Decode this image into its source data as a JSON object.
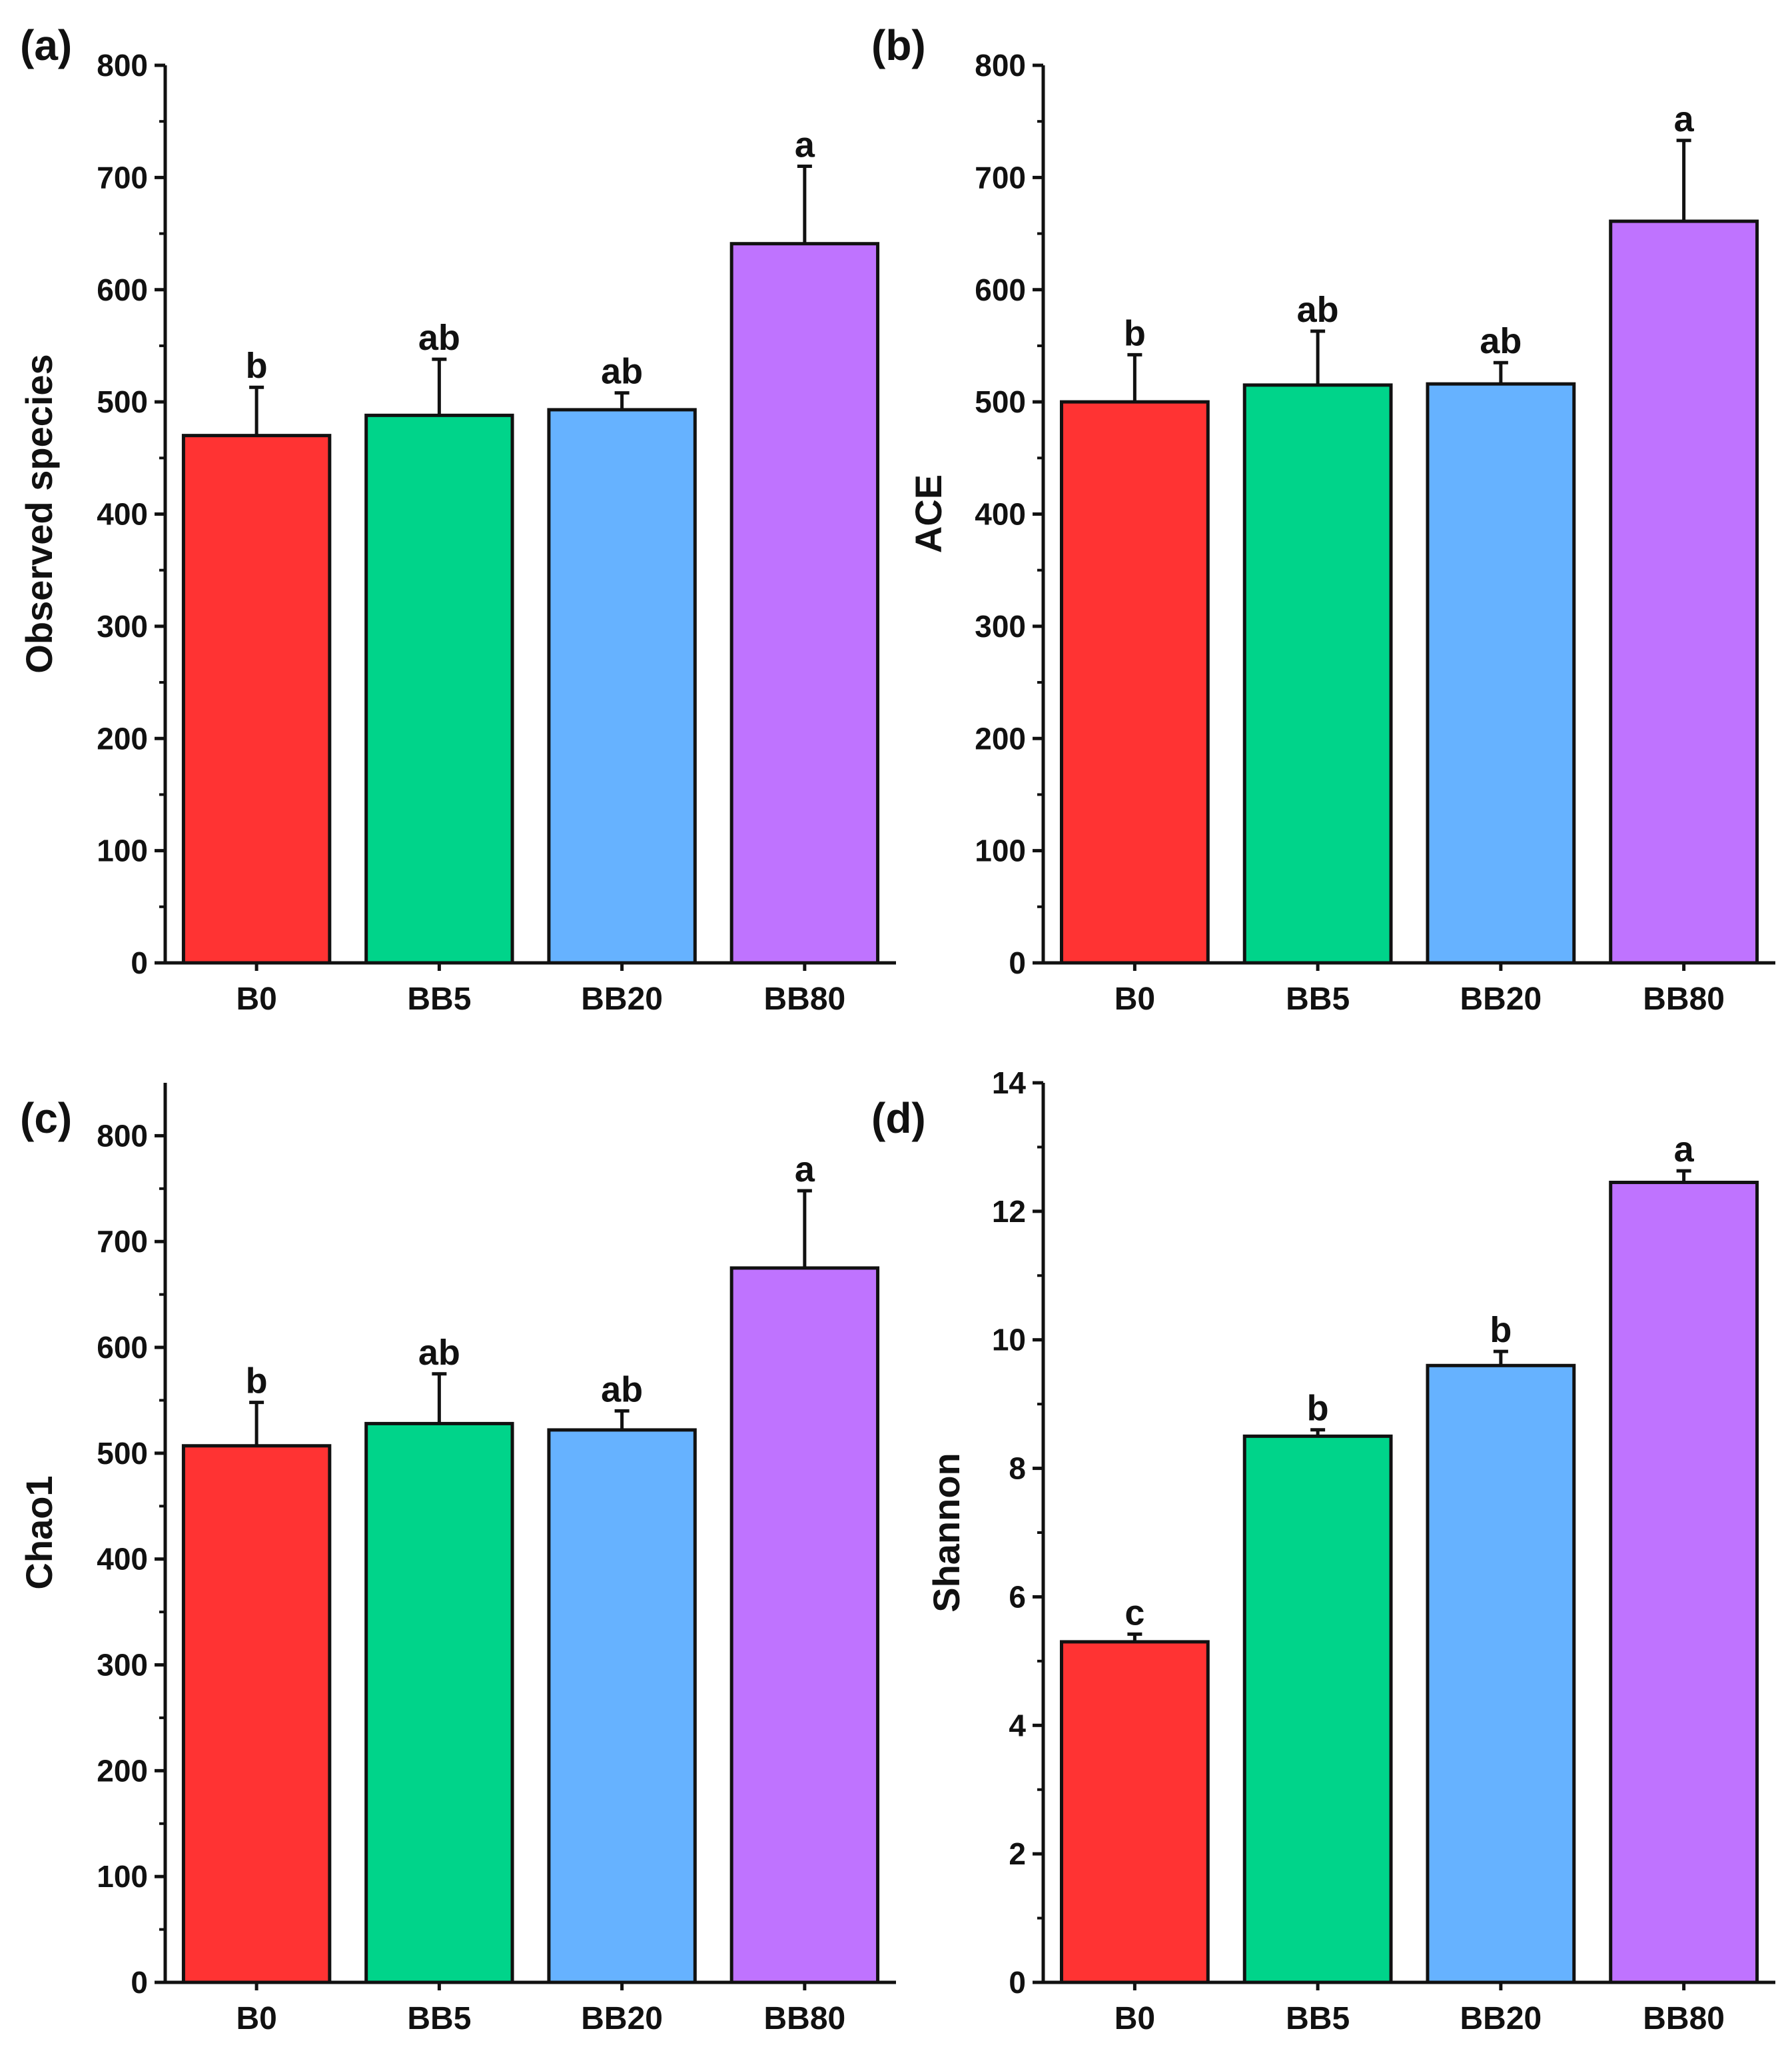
{
  "figure": {
    "background": "#ffffff"
  },
  "chart_data": [
    {
      "type": "bar",
      "panel_label": "(a)",
      "title": "",
      "xlabel": "",
      "ylabel": "Observed species",
      "categories": [
        "B0",
        "BB5",
        "BB20",
        "BB80"
      ],
      "values": [
        470,
        488,
        493,
        641
      ],
      "errors": [
        43,
        50,
        15,
        69
      ],
      "significance": [
        "b",
        "ab",
        "ab",
        "a"
      ],
      "colors": [
        "#ff3333",
        "#00d48a",
        "#66b2ff",
        "#bf73ff"
      ],
      "ylim": [
        0,
        800
      ],
      "yticks": [
        0,
        100,
        200,
        300,
        400,
        500,
        600,
        700,
        800
      ],
      "grid": false
    },
    {
      "type": "bar",
      "panel_label": "(b)",
      "title": "",
      "xlabel": "",
      "ylabel": "ACE",
      "categories": [
        "B0",
        "BB5",
        "BB20",
        "BB80"
      ],
      "values": [
        500,
        515,
        516,
        661
      ],
      "errors": [
        42,
        48,
        19,
        72
      ],
      "significance": [
        "b",
        "ab",
        "ab",
        "a"
      ],
      "colors": [
        "#ff3333",
        "#00d48a",
        "#66b2ff",
        "#bf73ff"
      ],
      "ylim": [
        0,
        800
      ],
      "yticks": [
        0,
        100,
        200,
        300,
        400,
        500,
        600,
        700,
        800
      ],
      "grid": false
    },
    {
      "type": "bar",
      "panel_label": "(c)",
      "title": "",
      "xlabel": "",
      "ylabel": "Chao1",
      "categories": [
        "B0",
        "BB5",
        "BB20",
        "BB80"
      ],
      "values": [
        507,
        528,
        522,
        675
      ],
      "errors": [
        41,
        47,
        18,
        73
      ],
      "significance": [
        "b",
        "ab",
        "ab",
        "a"
      ],
      "colors": [
        "#ff3333",
        "#00d48a",
        "#66b2ff",
        "#bf73ff"
      ],
      "ylim": [
        0,
        850
      ],
      "yticks": [
        0,
        100,
        200,
        300,
        400,
        500,
        600,
        700,
        800
      ],
      "grid": false
    },
    {
      "type": "bar",
      "panel_label": "(d)",
      "title": "",
      "xlabel": "",
      "ylabel": "Shannon",
      "categories": [
        "B0",
        "BB5",
        "BB20",
        "BB80"
      ],
      "values": [
        5.3,
        8.5,
        9.6,
        12.45
      ],
      "errors": [
        0.12,
        0.1,
        0.22,
        0.18
      ],
      "significance": [
        "c",
        "b",
        "b",
        "a"
      ],
      "colors": [
        "#ff3333",
        "#00d48a",
        "#66b2ff",
        "#bf73ff"
      ],
      "ylim": [
        0,
        14
      ],
      "yticks": [
        0,
        2,
        4,
        6,
        8,
        10,
        12,
        14
      ],
      "grid": false
    }
  ]
}
